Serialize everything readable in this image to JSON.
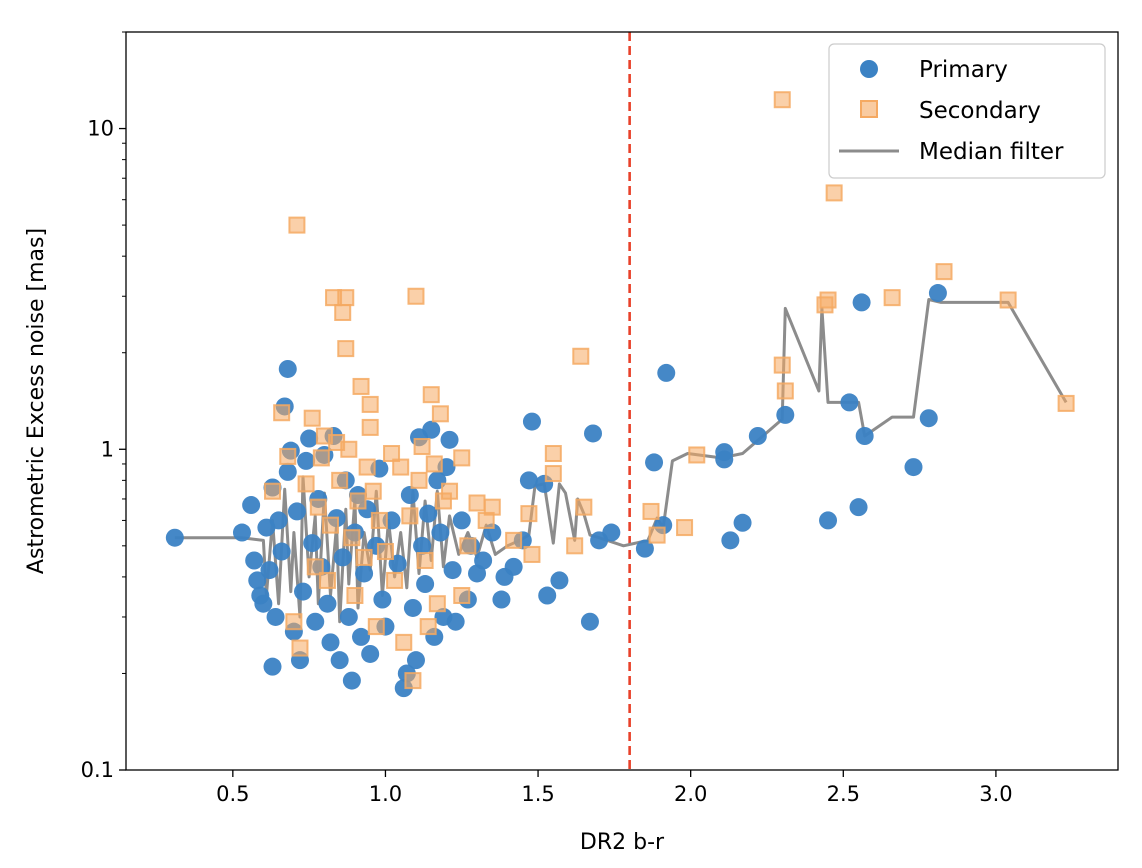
{
  "chart_data": {
    "type": "scatter",
    "xlabel": "DR2 b-r",
    "ylabel": "Astrometric Excess noise [mas]",
    "xlim": [
      0.15,
      3.4
    ],
    "ylim": [
      0.1,
      20
    ],
    "yscale": "log",
    "x_ticks": [
      0.5,
      1.0,
      1.5,
      2.0,
      2.5,
      3.0
    ],
    "x_tick_labels": [
      "0.5",
      "1.0",
      "1.5",
      "2.0",
      "2.5",
      "3.0"
    ],
    "y_ticks": [
      0.1,
      1,
      10
    ],
    "y_tick_labels": [
      "0.1",
      "1",
      "10"
    ],
    "legend_position": "top-right",
    "cutoff_line": {
      "x": 1.8,
      "color": "#e8412a",
      "style": "dashed"
    },
    "colors": {
      "primary": "#3b82c4",
      "secondary": "#f5a962",
      "median": "#8c8c8c"
    },
    "series": [
      {
        "name": "Primary",
        "marker": "circle",
        "points": [
          [
            0.31,
            0.53
          ],
          [
            0.53,
            0.55
          ],
          [
            0.56,
            0.67
          ],
          [
            0.57,
            0.45
          ],
          [
            0.58,
            0.39
          ],
          [
            0.59,
            0.35
          ],
          [
            0.6,
            0.33
          ],
          [
            0.61,
            0.57
          ],
          [
            0.62,
            0.42
          ],
          [
            0.63,
            0.76
          ],
          [
            0.63,
            0.21
          ],
          [
            0.64,
            0.3
          ],
          [
            0.65,
            0.6
          ],
          [
            0.66,
            0.48
          ],
          [
            0.67,
            1.36
          ],
          [
            0.68,
            1.78
          ],
          [
            0.68,
            0.85
          ],
          [
            0.69,
            0.99
          ],
          [
            0.7,
            0.27
          ],
          [
            0.71,
            0.64
          ],
          [
            0.72,
            0.22
          ],
          [
            0.73,
            0.36
          ],
          [
            0.74,
            0.92
          ],
          [
            0.75,
            1.08
          ],
          [
            0.76,
            0.51
          ],
          [
            0.77,
            0.29
          ],
          [
            0.78,
            0.7
          ],
          [
            0.79,
            0.43
          ],
          [
            0.8,
            0.96
          ],
          [
            0.81,
            0.33
          ],
          [
            0.82,
            0.25
          ],
          [
            0.83,
            1.1
          ],
          [
            0.84,
            0.61
          ],
          [
            0.85,
            0.22
          ],
          [
            0.86,
            0.46
          ],
          [
            0.87,
            0.8
          ],
          [
            0.88,
            0.3
          ],
          [
            0.89,
            0.19
          ],
          [
            0.9,
            0.55
          ],
          [
            0.91,
            0.72
          ],
          [
            0.92,
            0.26
          ],
          [
            0.93,
            0.41
          ],
          [
            0.94,
            0.65
          ],
          [
            0.95,
            0.23
          ],
          [
            0.97,
            0.5
          ],
          [
            0.98,
            0.87
          ],
          [
            0.99,
            0.34
          ],
          [
            1.0,
            0.28
          ],
          [
            1.02,
            0.6
          ],
          [
            1.04,
            0.44
          ],
          [
            1.06,
            0.18
          ],
          [
            1.07,
            0.2
          ],
          [
            1.08,
            0.72
          ],
          [
            1.09,
            0.32
          ],
          [
            1.1,
            0.22
          ],
          [
            1.11,
            1.09
          ],
          [
            1.12,
            0.5
          ],
          [
            1.13,
            0.38
          ],
          [
            1.14,
            0.63
          ],
          [
            1.15,
            1.15
          ],
          [
            1.16,
            0.26
          ],
          [
            1.17,
            0.8
          ],
          [
            1.18,
            0.55
          ],
          [
            1.19,
            0.3
          ],
          [
            1.2,
            0.88
          ],
          [
            1.21,
            1.07
          ],
          [
            1.22,
            0.42
          ],
          [
            1.23,
            0.29
          ],
          [
            1.25,
            0.6
          ],
          [
            1.27,
            0.34
          ],
          [
            1.28,
            0.5
          ],
          [
            1.3,
            0.41
          ],
          [
            1.32,
            0.45
          ],
          [
            1.35,
            0.55
          ],
          [
            1.38,
            0.34
          ],
          [
            1.39,
            0.4
          ],
          [
            1.42,
            0.43
          ],
          [
            1.45,
            0.52
          ],
          [
            1.47,
            0.8
          ],
          [
            1.48,
            1.22
          ],
          [
            1.52,
            0.78
          ],
          [
            1.53,
            0.35
          ],
          [
            1.57,
            0.39
          ],
          [
            1.67,
            0.29
          ],
          [
            1.68,
            1.12
          ],
          [
            1.7,
            0.52
          ],
          [
            1.74,
            0.55
          ],
          [
            1.85,
            0.49
          ],
          [
            1.88,
            0.91
          ],
          [
            1.91,
            0.58
          ],
          [
            1.92,
            1.73
          ],
          [
            2.11,
            0.93
          ],
          [
            2.11,
            0.98
          ],
          [
            2.13,
            0.52
          ],
          [
            2.17,
            0.59
          ],
          [
            2.22,
            1.1
          ],
          [
            2.31,
            1.28
          ],
          [
            2.45,
            0.6
          ],
          [
            2.52,
            1.4
          ],
          [
            2.55,
            0.66
          ],
          [
            2.56,
            2.87
          ],
          [
            2.57,
            1.1
          ],
          [
            2.73,
            0.88
          ],
          [
            2.78,
            1.25
          ],
          [
            2.81,
            3.07
          ]
        ]
      },
      {
        "name": "Secondary",
        "marker": "square",
        "points": [
          [
            0.63,
            0.74
          ],
          [
            0.66,
            1.3
          ],
          [
            0.68,
            0.95
          ],
          [
            0.7,
            0.29
          ],
          [
            0.71,
            5.0
          ],
          [
            0.72,
            0.24
          ],
          [
            0.74,
            0.78
          ],
          [
            0.76,
            1.25
          ],
          [
            0.77,
            0.43
          ],
          [
            0.78,
            0.66
          ],
          [
            0.79,
            0.94
          ],
          [
            0.8,
            1.1
          ],
          [
            0.81,
            0.39
          ],
          [
            0.82,
            0.58
          ],
          [
            0.83,
            2.97
          ],
          [
            0.84,
            1.05
          ],
          [
            0.85,
            0.8
          ],
          [
            0.86,
            2.67
          ],
          [
            0.87,
            2.06
          ],
          [
            0.87,
            2.97
          ],
          [
            0.88,
            1.0
          ],
          [
            0.89,
            0.53
          ],
          [
            0.9,
            0.35
          ],
          [
            0.91,
            0.69
          ],
          [
            0.92,
            1.57
          ],
          [
            0.93,
            0.46
          ],
          [
            0.94,
            0.88
          ],
          [
            0.95,
            1.38
          ],
          [
            0.95,
            1.17
          ],
          [
            0.96,
            0.74
          ],
          [
            0.97,
            0.28
          ],
          [
            0.98,
            0.6
          ],
          [
            1.0,
            0.48
          ],
          [
            1.02,
            0.97
          ],
          [
            1.03,
            0.39
          ],
          [
            1.05,
            0.88
          ],
          [
            1.06,
            0.25
          ],
          [
            1.08,
            0.62
          ],
          [
            1.09,
            0.19
          ],
          [
            1.1,
            3.0
          ],
          [
            1.11,
            0.8
          ],
          [
            1.12,
            1.02
          ],
          [
            1.13,
            0.45
          ],
          [
            1.14,
            0.28
          ],
          [
            1.15,
            1.48
          ],
          [
            1.16,
            0.9
          ],
          [
            1.17,
            0.33
          ],
          [
            1.18,
            1.29
          ],
          [
            1.19,
            0.69
          ],
          [
            1.21,
            0.74
          ],
          [
            1.25,
            0.94
          ],
          [
            1.25,
            0.35
          ],
          [
            1.27,
            0.5
          ],
          [
            1.3,
            0.68
          ],
          [
            1.33,
            0.6
          ],
          [
            1.35,
            0.66
          ],
          [
            1.42,
            0.52
          ],
          [
            1.47,
            0.63
          ],
          [
            1.48,
            0.47
          ],
          [
            1.55,
            0.97
          ],
          [
            1.55,
            0.84
          ],
          [
            1.62,
            0.5
          ],
          [
            1.64,
            1.95
          ],
          [
            1.65,
            0.66
          ],
          [
            1.87,
            0.64
          ],
          [
            1.89,
            0.54
          ],
          [
            1.98,
            0.57
          ],
          [
            2.02,
            0.96
          ],
          [
            2.3,
            12.3
          ],
          [
            2.3,
            1.83
          ],
          [
            2.31,
            1.52
          ],
          [
            2.44,
            2.82
          ],
          [
            2.45,
            2.92
          ],
          [
            2.47,
            6.3
          ],
          [
            2.66,
            2.97
          ],
          [
            2.83,
            3.58
          ],
          [
            3.04,
            2.92
          ],
          [
            3.23,
            1.39
          ]
        ]
      },
      {
        "name": "Median filter",
        "marker": "line",
        "points": [
          [
            0.31,
            0.53
          ],
          [
            0.53,
            0.53
          ],
          [
            0.6,
            0.52
          ],
          [
            0.61,
            0.35
          ],
          [
            0.63,
            0.6
          ],
          [
            0.65,
            0.33
          ],
          [
            0.67,
            0.75
          ],
          [
            0.69,
            0.36
          ],
          [
            0.7,
            0.55
          ],
          [
            0.72,
            0.3
          ],
          [
            0.73,
            0.82
          ],
          [
            0.75,
            0.4
          ],
          [
            0.77,
            0.62
          ],
          [
            0.78,
            0.33
          ],
          [
            0.8,
            0.73
          ],
          [
            0.82,
            0.35
          ],
          [
            0.84,
            0.58
          ],
          [
            0.85,
            0.29
          ],
          [
            0.87,
            0.65
          ],
          [
            0.88,
            0.38
          ],
          [
            0.9,
            0.7
          ],
          [
            0.91,
            0.32
          ],
          [
            0.93,
            0.55
          ],
          [
            0.95,
            0.42
          ],
          [
            0.97,
            0.74
          ],
          [
            0.99,
            0.35
          ],
          [
            1.01,
            0.6
          ],
          [
            1.03,
            0.4
          ],
          [
            1.05,
            0.55
          ],
          [
            1.07,
            0.37
          ],
          [
            1.09,
            0.74
          ],
          [
            1.11,
            0.41
          ],
          [
            1.13,
            0.69
          ],
          [
            1.15,
            0.45
          ],
          [
            1.17,
            0.74
          ],
          [
            1.19,
            0.43
          ],
          [
            1.21,
            0.62
          ],
          [
            1.24,
            0.47
          ],
          [
            1.27,
            0.55
          ],
          [
            1.3,
            0.46
          ],
          [
            1.33,
            0.58
          ],
          [
            1.36,
            0.47
          ],
          [
            1.4,
            0.5
          ],
          [
            1.44,
            0.52
          ],
          [
            1.47,
            0.54
          ],
          [
            1.49,
            0.77
          ],
          [
            1.52,
            0.78
          ],
          [
            1.55,
            0.51
          ],
          [
            1.57,
            0.78
          ],
          [
            1.59,
            0.73
          ],
          [
            1.62,
            0.52
          ],
          [
            1.63,
            0.7
          ],
          [
            1.65,
            0.63
          ],
          [
            1.67,
            0.54
          ],
          [
            1.7,
            0.53
          ],
          [
            1.78,
            0.5
          ],
          [
            1.86,
            0.52
          ],
          [
            1.89,
            0.61
          ],
          [
            1.91,
            0.57
          ],
          [
            1.94,
            0.92
          ],
          [
            1.99,
            0.97
          ],
          [
            2.1,
            0.94
          ],
          [
            2.17,
            0.97
          ],
          [
            2.3,
            1.24
          ],
          [
            2.31,
            2.75
          ],
          [
            2.42,
            1.52
          ],
          [
            2.43,
            2.75
          ],
          [
            2.45,
            1.4
          ],
          [
            2.55,
            1.4
          ],
          [
            2.57,
            1.1
          ],
          [
            2.66,
            1.26
          ],
          [
            2.73,
            1.26
          ],
          [
            2.78,
            2.93
          ],
          [
            2.82,
            2.87
          ],
          [
            3.04,
            2.87
          ],
          [
            3.23,
            1.4
          ]
        ]
      }
    ]
  }
}
